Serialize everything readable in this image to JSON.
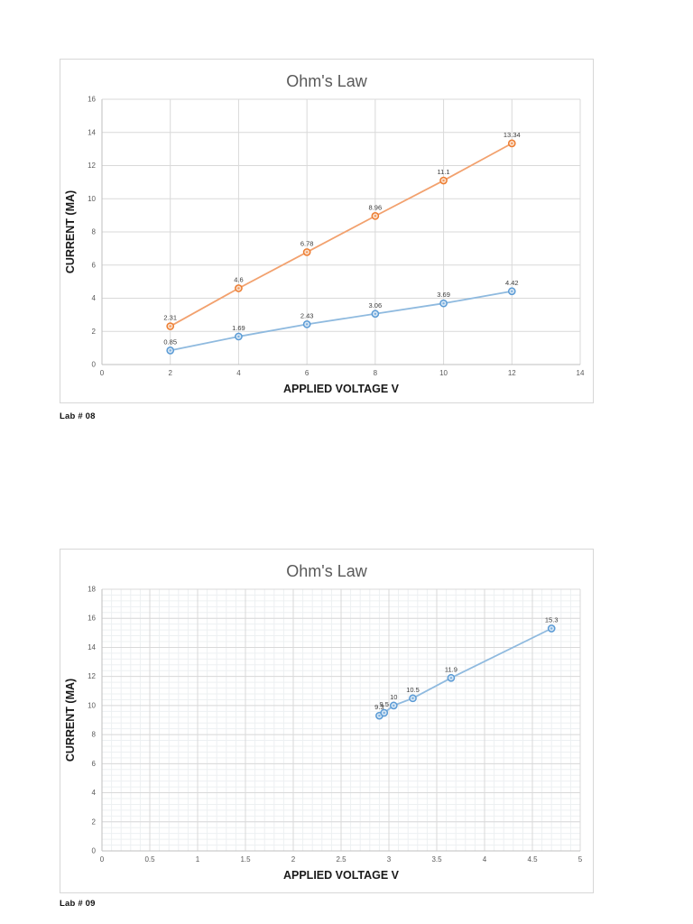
{
  "page": {
    "background": "#ffffff"
  },
  "captions": [
    "Lab # 08",
    "Lab # 09"
  ],
  "styles": {
    "title_color": "#595959",
    "tick_color": "#595959",
    "axis_title_color": "#1a1a1a",
    "data_label_color": "#3b3b3b",
    "major_grid_color": "#d9d9d9",
    "minor_grid_color": "#edf0f2",
    "axis_line_color": "#bfbfbf"
  },
  "chart_data": [
    {
      "type": "line",
      "title": "Ohm's Law",
      "xlabel": "APPLIED VOLTAGE V",
      "ylabel": "CURRENT (MA)",
      "xlim": [
        0,
        14
      ],
      "ylim": [
        0,
        16
      ],
      "x_step": 2,
      "y_step": 2,
      "grid": "major",
      "legend": "none",
      "series": [
        {
          "name": "current-series-1-blue",
          "color": "#5B9BD5",
          "line": "#8FBADF",
          "fill": "#D6E6F4",
          "x": [
            2,
            4,
            6,
            8,
            10,
            12
          ],
          "y": [
            0.85,
            1.69,
            2.43,
            3.06,
            3.69,
            4.42
          ],
          "labels": [
            "0.85",
            "1.69",
            "2.43",
            "3.06",
            "3.69",
            "4.42"
          ]
        },
        {
          "name": "current-series-2-orange",
          "color": "#ED7D31",
          "line": "#F2A16E",
          "fill": "#FADFCB",
          "x": [
            2,
            4,
            6,
            8,
            10,
            12
          ],
          "y": [
            2.31,
            4.6,
            6.78,
            8.96,
            11.1,
            13.34
          ],
          "labels": [
            "2.31",
            "4.6",
            "6.78",
            "8.96",
            "11.1",
            "13.34"
          ]
        }
      ]
    },
    {
      "type": "line",
      "title": "Ohm's Law",
      "xlabel": "APPLIED VOLTAGE V",
      "ylabel": "CURRENT (MA)",
      "xlim": [
        0,
        5
      ],
      "ylim": [
        0,
        18
      ],
      "x_step": 0.5,
      "y_step": 2,
      "x_minor": 0.1,
      "y_minor": 0.4,
      "grid": "major+minor",
      "legend": "none",
      "series": [
        {
          "name": "current-series-blue",
          "color": "#5B9BD5",
          "line": "#8FBADF",
          "fill": "#D6E6F4",
          "x": [
            2.9,
            2.95,
            3.05,
            3.25,
            3.65,
            4.7
          ],
          "y": [
            9.3,
            9.5,
            10,
            10.5,
            11.9,
            15.3
          ],
          "labels": [
            "9.3",
            "9.5",
            "10",
            "10.5",
            "11.9",
            "15.3"
          ]
        }
      ]
    }
  ]
}
